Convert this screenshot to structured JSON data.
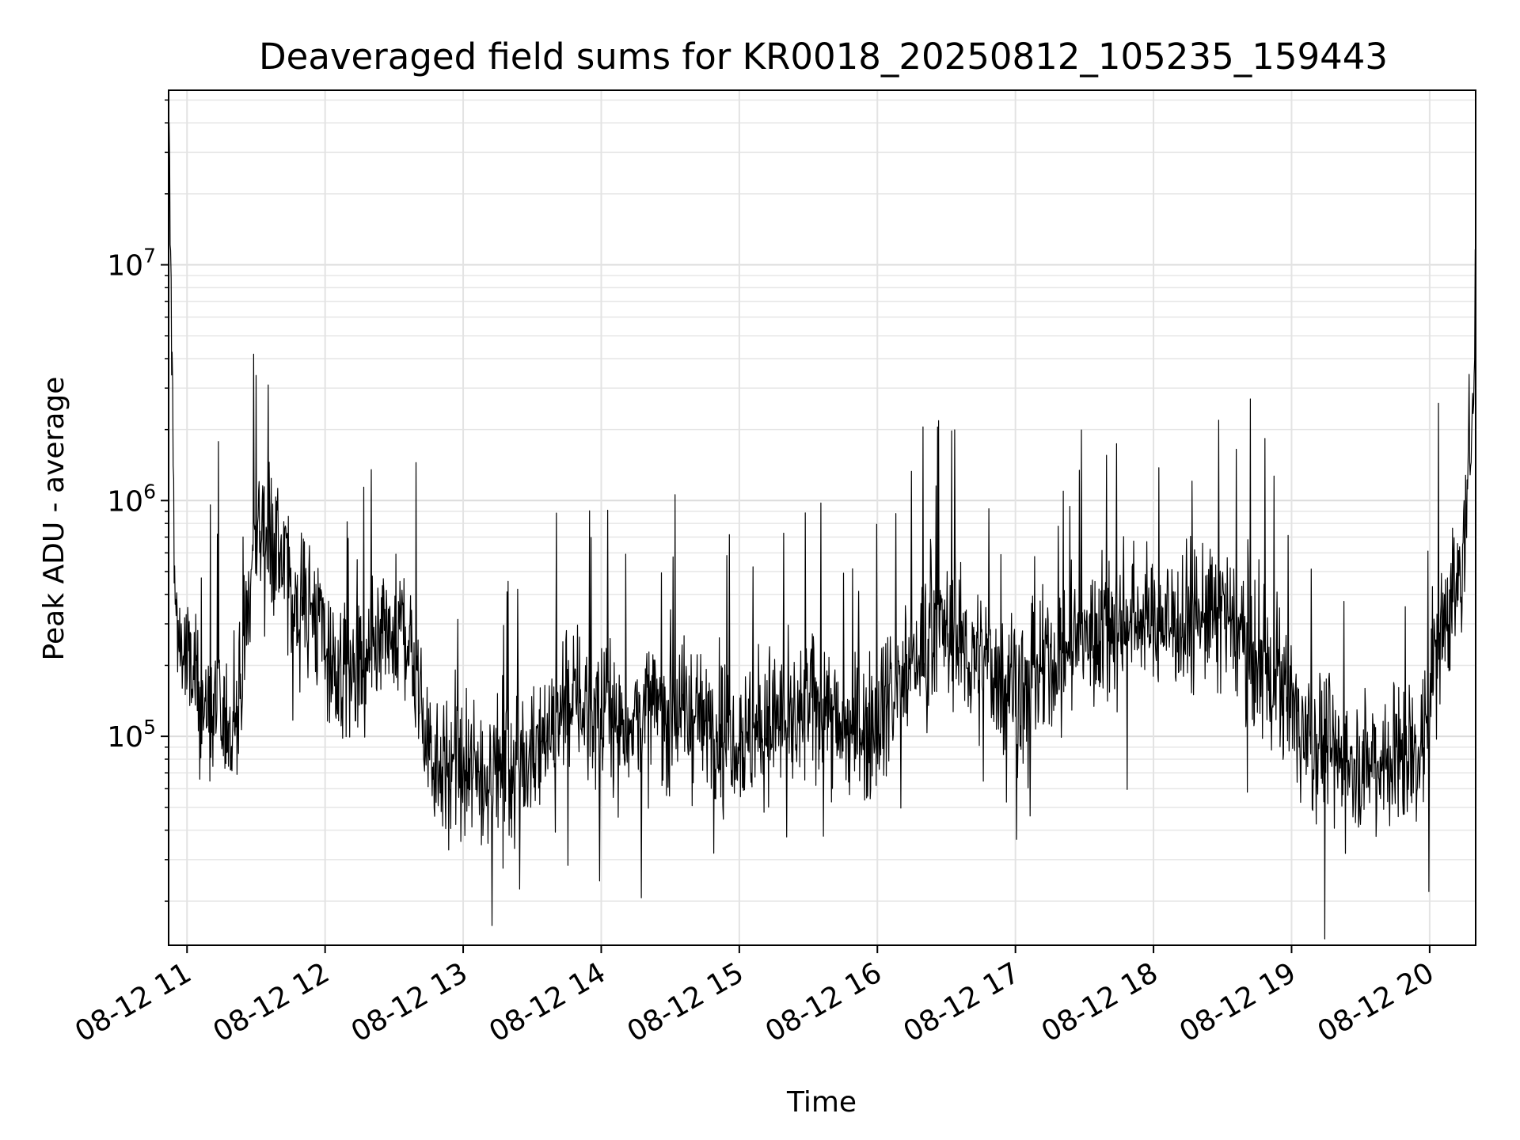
{
  "chart_data": {
    "type": "line",
    "title": "Deaveraged field sums for KR0018_20250812_105235_159443",
    "xlabel": "Time",
    "ylabel": "Peak ADU - average",
    "yscale": "log",
    "ylim": [
      13000,
      55000000
    ],
    "xlim": [
      "2025-08-12 10:52",
      "2025-08-12 20:20"
    ],
    "grid": true,
    "color": "#000000",
    "xticks": [
      {
        "value": "2025-08-12 11:00",
        "label": "08-12 11"
      },
      {
        "value": "2025-08-12 12:00",
        "label": "08-12 12"
      },
      {
        "value": "2025-08-12 13:00",
        "label": "08-12 13"
      },
      {
        "value": "2025-08-12 14:00",
        "label": "08-12 14"
      },
      {
        "value": "2025-08-12 15:00",
        "label": "08-12 15"
      },
      {
        "value": "2025-08-12 16:00",
        "label": "08-12 16"
      },
      {
        "value": "2025-08-12 17:00",
        "label": "08-12 17"
      },
      {
        "value": "2025-08-12 18:00",
        "label": "08-12 18"
      },
      {
        "value": "2025-08-12 19:00",
        "label": "08-12 19"
      },
      {
        "value": "2025-08-12 20:00",
        "label": "08-12 20"
      }
    ],
    "yticks": [
      {
        "value": 100000,
        "base": "10",
        "exp": "5"
      },
      {
        "value": 1000000,
        "base": "10",
        "exp": "6"
      },
      {
        "value": 10000000,
        "base": "10",
        "exp": "7"
      }
    ],
    "series": [
      {
        "x": [
          "2025-08-12 10:52",
          "2025-08-12 10:55",
          "2025-08-12 11:00",
          "2025-08-12 11:08",
          "2025-08-12 11:15",
          "2025-08-12 11:22",
          "2025-08-12 11:30",
          "2025-08-12 11:38",
          "2025-08-12 11:45",
          "2025-08-12 11:55",
          "2025-08-12 12:05",
          "2025-08-12 12:15",
          "2025-08-12 12:25",
          "2025-08-12 12:35",
          "2025-08-12 12:45",
          "2025-08-12 12:55",
          "2025-08-12 13:05",
          "2025-08-12 13:15",
          "2025-08-12 13:25",
          "2025-08-12 13:35",
          "2025-08-12 13:45",
          "2025-08-12 13:55",
          "2025-08-12 14:05",
          "2025-08-12 14:15",
          "2025-08-12 14:25",
          "2025-08-12 14:35",
          "2025-08-12 14:45",
          "2025-08-12 14:55",
          "2025-08-12 15:05",
          "2025-08-12 15:15",
          "2025-08-12 15:25",
          "2025-08-12 15:35",
          "2025-08-12 15:45",
          "2025-08-12 15:55",
          "2025-08-12 16:05",
          "2025-08-12 16:15",
          "2025-08-12 16:25",
          "2025-08-12 16:35",
          "2025-08-12 16:45",
          "2025-08-12 16:55",
          "2025-08-12 17:05",
          "2025-08-12 17:15",
          "2025-08-12 17:25",
          "2025-08-12 17:35",
          "2025-08-12 17:45",
          "2025-08-12 17:55",
          "2025-08-12 18:05",
          "2025-08-12 18:15",
          "2025-08-12 18:25",
          "2025-08-12 18:35",
          "2025-08-12 18:45",
          "2025-08-12 18:55",
          "2025-08-12 19:05",
          "2025-08-12 19:15",
          "2025-08-12 19:25",
          "2025-08-12 19:35",
          "2025-08-12 19:45",
          "2025-08-12 19:55",
          "2025-08-12 20:00",
          "2025-08-12 20:05",
          "2025-08-12 20:10",
          "2025-08-12 20:15",
          "2025-08-12 20:20"
        ],
        "y": [
          40000000,
          300000,
          200000,
          130000,
          110000,
          120000,
          800000,
          700000,
          400000,
          350000,
          180000,
          170000,
          230000,
          300000,
          90000,
          70000,
          65000,
          75000,
          80000,
          100000,
          150000,
          130000,
          110000,
          120000,
          130000,
          130000,
          115000,
          110000,
          100000,
          120000,
          110000,
          150000,
          100000,
          110000,
          150000,
          200000,
          300000,
          250000,
          200000,
          180000,
          160000,
          200000,
          250000,
          280000,
          300000,
          330000,
          300000,
          320000,
          330000,
          300000,
          200000,
          160000,
          110000,
          90000,
          80000,
          80000,
          85000,
          80000,
          150000,
          300000,
          400000,
          550000,
          5800000
        ]
      }
    ]
  }
}
